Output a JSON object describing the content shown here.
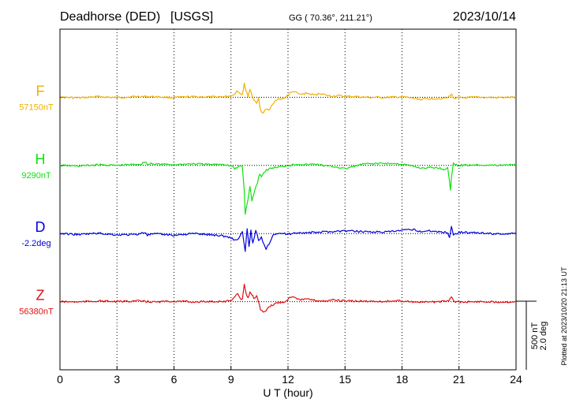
{
  "chart_data": {
    "type": "line",
    "title": {
      "station": "Deadhorse (DED)",
      "network": "[USGS]",
      "coords": "GG ( 70.36°, 211.21°)",
      "date": "2023/10/14"
    },
    "xlabel": "U T (hour)",
    "xlim": [
      0,
      24
    ],
    "xticks": [
      0,
      3,
      6,
      9,
      12,
      15,
      18,
      21,
      24
    ],
    "scale": {
      "amplitude": "500 nT",
      "angle": "2.0 deg",
      "divisions": 1
    },
    "plotted_note": "Plotted at 2023/10/20 21:13 UT",
    "series": [
      {
        "name": "F",
        "baseline_label": "57150nT",
        "color": "#f0b000",
        "units_per_division": 500,
        "points": [
          [
            0,
            0
          ],
          [
            1,
            -5
          ],
          [
            2,
            5
          ],
          [
            3,
            -3
          ],
          [
            4,
            6
          ],
          [
            5,
            4
          ],
          [
            6,
            -2
          ],
          [
            7,
            4
          ],
          [
            8,
            2
          ],
          [
            8.8,
            6
          ],
          [
            9.1,
            15
          ],
          [
            9.3,
            45
          ],
          [
            9.5,
            30
          ],
          [
            9.6,
            20
          ],
          [
            9.7,
            105
          ],
          [
            9.8,
            40
          ],
          [
            9.9,
            10
          ],
          [
            10.0,
            60
          ],
          [
            10.1,
            20
          ],
          [
            10.2,
            -20
          ],
          [
            10.35,
            -40
          ],
          [
            10.45,
            -10
          ],
          [
            10.55,
            -95
          ],
          [
            10.7,
            -115
          ],
          [
            10.85,
            -85
          ],
          [
            11.0,
            -100
          ],
          [
            11.2,
            -45
          ],
          [
            11.4,
            -15
          ],
          [
            11.6,
            -15
          ],
          [
            11.8,
            -8
          ],
          [
            12.1,
            30
          ],
          [
            12.3,
            45
          ],
          [
            12.6,
            20
          ],
          [
            13.0,
            30
          ],
          [
            13.4,
            15
          ],
          [
            13.7,
            30
          ],
          [
            14.0,
            15
          ],
          [
            14.3,
            8
          ],
          [
            14.6,
            12
          ],
          [
            15.0,
            5
          ],
          [
            15.5,
            6
          ],
          [
            16.0,
            0
          ],
          [
            17.0,
            -2
          ],
          [
            18.0,
            3
          ],
          [
            18.5,
            -5
          ],
          [
            19.0,
            -15
          ],
          [
            19.5,
            -10
          ],
          [
            20.0,
            -8
          ],
          [
            20.4,
            -5
          ],
          [
            20.6,
            25
          ],
          [
            20.7,
            -5
          ],
          [
            21.0,
            -5
          ],
          [
            22.0,
            0
          ],
          [
            23.0,
            -3
          ],
          [
            24.0,
            0
          ]
        ]
      },
      {
        "name": "H",
        "baseline_label": "9290nT",
        "color": "#10e010",
        "units_per_division": 500,
        "points": [
          [
            0,
            0
          ],
          [
            1,
            -5
          ],
          [
            2,
            5
          ],
          [
            3,
            0
          ],
          [
            4,
            8
          ],
          [
            4.3,
            10
          ],
          [
            4.5,
            30
          ],
          [
            4.6,
            5
          ],
          [
            4.8,
            15
          ],
          [
            5.0,
            10
          ],
          [
            6.0,
            5
          ],
          [
            7.0,
            12
          ],
          [
            8.0,
            6
          ],
          [
            8.6,
            10
          ],
          [
            8.9,
            0
          ],
          [
            9.1,
            -10
          ],
          [
            9.2,
            -25
          ],
          [
            9.3,
            -20
          ],
          [
            9.4,
            -10
          ],
          [
            9.5,
            0
          ],
          [
            9.6,
            -12
          ],
          [
            9.7,
            -185
          ],
          [
            9.75,
            -365
          ],
          [
            9.8,
            -310
          ],
          [
            9.9,
            -250
          ],
          [
            10.0,
            -150
          ],
          [
            10.1,
            -265
          ],
          [
            10.2,
            -210
          ],
          [
            10.3,
            -160
          ],
          [
            10.4,
            -120
          ],
          [
            10.5,
            -60
          ],
          [
            10.6,
            -80
          ],
          [
            10.8,
            -40
          ],
          [
            11.0,
            -25
          ],
          [
            11.3,
            -15
          ],
          [
            11.6,
            -10
          ],
          [
            12.0,
            0
          ],
          [
            12.5,
            10
          ],
          [
            13.0,
            5
          ],
          [
            13.5,
            10
          ],
          [
            14.0,
            -5
          ],
          [
            14.5,
            -10
          ],
          [
            15.0,
            -25
          ],
          [
            15.5,
            -5
          ],
          [
            16.0,
            10
          ],
          [
            17.0,
            15
          ],
          [
            18.0,
            10
          ],
          [
            18.5,
            -5
          ],
          [
            19.0,
            -20
          ],
          [
            19.5,
            -15
          ],
          [
            20.0,
            -20
          ],
          [
            20.2,
            -30
          ],
          [
            20.4,
            -15
          ],
          [
            20.55,
            -175
          ],
          [
            20.6,
            -90
          ],
          [
            20.7,
            20
          ],
          [
            20.8,
            5
          ],
          [
            21.0,
            0
          ],
          [
            22.0,
            5
          ],
          [
            23.0,
            0
          ],
          [
            24.0,
            10
          ]
        ]
      },
      {
        "name": "D",
        "baseline_label": "-2.2deg",
        "color": "#0000e0",
        "units_per_division": 2.0,
        "points": [
          [
            0,
            0
          ],
          [
            1,
            -0.03
          ],
          [
            2,
            0.01
          ],
          [
            3,
            -0.04
          ],
          [
            4,
            -0.03
          ],
          [
            4.5,
            0.04
          ],
          [
            4.6,
            -0.05
          ],
          [
            4.8,
            -0.02
          ],
          [
            5,
            -0.01
          ],
          [
            6,
            -0.05
          ],
          [
            7,
            0
          ],
          [
            8,
            -0.04
          ],
          [
            8.5,
            -0.06
          ],
          [
            9.0,
            -0.12
          ],
          [
            9.2,
            -0.2
          ],
          [
            9.4,
            -0.15
          ],
          [
            9.6,
            0.05
          ],
          [
            9.75,
            -0.55
          ],
          [
            9.85,
            0.15
          ],
          [
            9.95,
            -0.4
          ],
          [
            10.05,
            0.1
          ],
          [
            10.15,
            -0.3
          ],
          [
            10.3,
            0.12
          ],
          [
            10.45,
            -0.22
          ],
          [
            10.6,
            -0.12
          ],
          [
            10.75,
            -0.35
          ],
          [
            10.85,
            -0.45
          ],
          [
            11.0,
            -0.3
          ],
          [
            11.2,
            -0.05
          ],
          [
            11.4,
            0.02
          ],
          [
            12.0,
            -0.02
          ],
          [
            12.5,
            0.03
          ],
          [
            13.0,
            0.02
          ],
          [
            14.0,
            0.05
          ],
          [
            15.0,
            0.08
          ],
          [
            16.0,
            0.06
          ],
          [
            17.0,
            0.04
          ],
          [
            17.5,
            0.06
          ],
          [
            18.0,
            0.09
          ],
          [
            18.6,
            0.12
          ],
          [
            19.0,
            0.06
          ],
          [
            19.5,
            0.08
          ],
          [
            20.0,
            0.05
          ],
          [
            20.4,
            0.03
          ],
          [
            20.5,
            -0.12
          ],
          [
            20.6,
            0.22
          ],
          [
            20.7,
            -0.05
          ],
          [
            21.0,
            0.05
          ],
          [
            21.5,
            0.03
          ],
          [
            22.0,
            0.02
          ],
          [
            23.0,
            -0.01
          ],
          [
            24.0,
            0
          ]
        ]
      },
      {
        "name": "Z",
        "baseline_label": "56380nT",
        "color": "#e01010",
        "units_per_division": 500,
        "points": [
          [
            0,
            0
          ],
          [
            1,
            -2
          ],
          [
            2,
            5
          ],
          [
            3,
            0
          ],
          [
            4,
            6
          ],
          [
            5,
            -3
          ],
          [
            6,
            4
          ],
          [
            7,
            -2
          ],
          [
            8,
            2
          ],
          [
            8.7,
            2
          ],
          [
            9.0,
            10
          ],
          [
            9.2,
            40
          ],
          [
            9.35,
            60
          ],
          [
            9.5,
            20
          ],
          [
            9.6,
            15
          ],
          [
            9.7,
            130
          ],
          [
            9.8,
            60
          ],
          [
            9.9,
            25
          ],
          [
            10.0,
            70
          ],
          [
            10.1,
            55
          ],
          [
            10.2,
            25
          ],
          [
            10.35,
            40
          ],
          [
            10.45,
            0
          ],
          [
            10.55,
            -60
          ],
          [
            10.7,
            -80
          ],
          [
            10.85,
            -70
          ],
          [
            11.0,
            -40
          ],
          [
            11.3,
            -15
          ],
          [
            11.6,
            -5
          ],
          [
            11.8,
            -2
          ],
          [
            12.1,
            30
          ],
          [
            12.3,
            40
          ],
          [
            12.6,
            15
          ],
          [
            13.0,
            18
          ],
          [
            13.5,
            8
          ],
          [
            14.0,
            5
          ],
          [
            14.3,
            15
          ],
          [
            14.6,
            8
          ],
          [
            15.0,
            5
          ],
          [
            16.0,
            3
          ],
          [
            17.0,
            2
          ],
          [
            18.0,
            6
          ],
          [
            18.5,
            0
          ],
          [
            19.0,
            -5
          ],
          [
            19.5,
            -2
          ],
          [
            20.0,
            0
          ],
          [
            20.4,
            2
          ],
          [
            20.6,
            35
          ],
          [
            20.7,
            5
          ],
          [
            21.0,
            -3
          ],
          [
            22.0,
            0
          ],
          [
            23.0,
            -2
          ],
          [
            24.0,
            0
          ]
        ]
      }
    ]
  }
}
